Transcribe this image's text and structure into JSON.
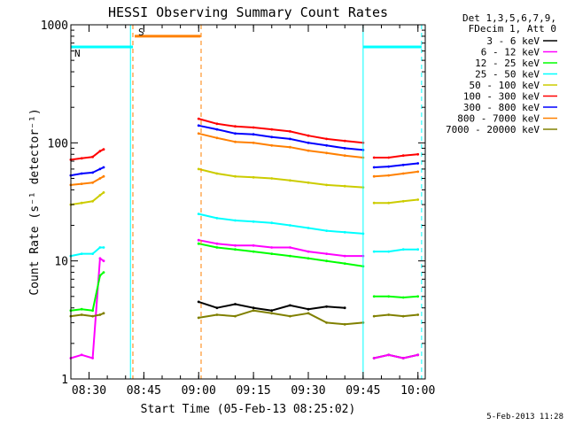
{
  "chart_data": {
    "type": "line",
    "title": "HESSI Observing Summary Count Rates",
    "xlabel": "Start Time (05-Feb-13 08:25:02)",
    "ylabel": "Count Rate (s⁻¹ detector⁻¹)",
    "yscale": "log",
    "ylim": [
      1,
      1000
    ],
    "xlim": [
      "08:25:02",
      "10:02:00"
    ],
    "x_ticks": [
      "08:30",
      "08:45",
      "09:00",
      "09:15",
      "09:30",
      "09:45",
      "10:00"
    ],
    "y_ticks": [
      "1",
      "10",
      "100",
      "1000"
    ],
    "legend_header": [
      "Det 1,3,5,6,7,9,",
      "FDecim 1, Att 0"
    ],
    "legend_position": "right",
    "series": [
      {
        "name": "3 - 6 keV",
        "color": "#000000",
        "segments": [
          {
            "x": [
              "09:00",
              "09:05",
              "09:10",
              "09:15",
              "09:20",
              "09:25",
              "09:30",
              "09:35",
              "09:40"
            ],
            "y": [
              4.5,
              4.0,
              4.3,
              4.0,
              3.8,
              4.2,
              3.9,
              4.1,
              4.0
            ]
          },
          {
            "x": [
              "09:48",
              "09:52",
              "09:56",
              "10:00"
            ],
            "y": [
              1.5,
              1.6,
              1.5,
              1.6
            ]
          }
        ]
      },
      {
        "name": "6 - 12 keV",
        "color": "#ff00ff",
        "segments": [
          {
            "x": [
              "08:25",
              "08:28",
              "08:31",
              "08:33",
              "08:34"
            ],
            "y": [
              1.5,
              1.6,
              1.5,
              10.5,
              10.0
            ]
          },
          {
            "x": [
              "09:00",
              "09:05",
              "09:10",
              "09:15",
              "09:20",
              "09:25",
              "09:30",
              "09:35",
              "09:40",
              "09:45"
            ],
            "y": [
              15,
              14,
              13.5,
              13.5,
              13,
              13,
              12,
              11.5,
              11,
              11
            ]
          },
          {
            "x": [
              "09:48",
              "09:52",
              "09:56",
              "10:00"
            ],
            "y": [
              1.5,
              1.6,
              1.5,
              1.6
            ]
          }
        ]
      },
      {
        "name": "12 - 25 keV",
        "color": "#00ff00",
        "segments": [
          {
            "x": [
              "08:25",
              "08:28",
              "08:31",
              "08:33",
              "08:34"
            ],
            "y": [
              3.8,
              3.9,
              3.8,
              7.5,
              8.0
            ]
          },
          {
            "x": [
              "09:00",
              "09:05",
              "09:10",
              "09:15",
              "09:20",
              "09:25",
              "09:30",
              "09:35",
              "09:40",
              "09:45"
            ],
            "y": [
              14,
              13,
              12.5,
              12,
              11.5,
              11,
              10.5,
              10,
              9.5,
              9.0
            ]
          },
          {
            "x": [
              "09:48",
              "09:52",
              "09:56",
              "10:00"
            ],
            "y": [
              5.0,
              5.0,
              4.9,
              5.0
            ]
          }
        ]
      },
      {
        "name": "25 - 50 keV",
        "color": "#00ffff",
        "segments": [
          {
            "x": [
              "08:25",
              "08:28",
              "08:31",
              "08:33",
              "08:34"
            ],
            "y": [
              11,
              11.5,
              11.5,
              13,
              13
            ]
          },
          {
            "x": [
              "09:00",
              "09:05",
              "09:10",
              "09:15",
              "09:20",
              "09:25",
              "09:30",
              "09:35",
              "09:40",
              "09:45"
            ],
            "y": [
              25,
              23,
              22,
              21.5,
              21,
              20,
              19,
              18,
              17.5,
              17
            ]
          },
          {
            "x": [
              "09:48",
              "09:52",
              "09:56",
              "10:00"
            ],
            "y": [
              12,
              12,
              12.5,
              12.5
            ]
          }
        ]
      },
      {
        "name": "50 - 100 keV",
        "color": "#cccc00",
        "segments": [
          {
            "x": [
              "08:25",
              "08:28",
              "08:31",
              "08:33",
              "08:34"
            ],
            "y": [
              30,
              31,
              32,
              36,
              38
            ]
          },
          {
            "x": [
              "09:00",
              "09:05",
              "09:10",
              "09:15",
              "09:20",
              "09:25",
              "09:30",
              "09:35",
              "09:40",
              "09:45"
            ],
            "y": [
              60,
              55,
              52,
              51,
              50,
              48,
              46,
              44,
              43,
              42
            ]
          },
          {
            "x": [
              "09:48",
              "09:52",
              "09:56",
              "10:00"
            ],
            "y": [
              31,
              31,
              32,
              33
            ]
          }
        ]
      },
      {
        "name": "100 - 300 keV",
        "color": "#ff0000",
        "segments": [
          {
            "x": [
              "08:25",
              "08:28",
              "08:31",
              "08:33",
              "08:34"
            ],
            "y": [
              72,
              74,
              76,
              85,
              88
            ]
          },
          {
            "x": [
              "09:00",
              "09:05",
              "09:10",
              "09:15",
              "09:20",
              "09:25",
              "09:30",
              "09:35",
              "09:40",
              "09:45"
            ],
            "y": [
              160,
              145,
              138,
              135,
              130,
              125,
              115,
              108,
              104,
              100
            ]
          },
          {
            "x": [
              "09:48",
              "09:52",
              "09:56",
              "10:00"
            ],
            "y": [
              75,
              75,
              78,
              80
            ]
          }
        ]
      },
      {
        "name": "300 - 800 keV",
        "color": "#0000ff",
        "segments": [
          {
            "x": [
              "08:25",
              "08:28",
              "08:31",
              "08:33",
              "08:34"
            ],
            "y": [
              53,
              55,
              56,
              60,
              62
            ]
          },
          {
            "x": [
              "09:00",
              "09:05",
              "09:10",
              "09:15",
              "09:20",
              "09:25",
              "09:30",
              "09:35",
              "09:40",
              "09:45"
            ],
            "y": [
              140,
              130,
              120,
              118,
              112,
              108,
              100,
              95,
              90,
              87
            ]
          },
          {
            "x": [
              "09:48",
              "09:52",
              "09:56",
              "10:00"
            ],
            "y": [
              62,
              63,
              65,
              67
            ]
          }
        ]
      },
      {
        "name": "800 - 7000 keV",
        "color": "#ff8000",
        "segments": [
          {
            "x": [
              "08:25",
              "08:28",
              "08:31",
              "08:33",
              "08:34"
            ],
            "y": [
              44,
              45,
              46,
              50,
              52
            ]
          },
          {
            "x": [
              "09:00",
              "09:05",
              "09:10",
              "09:15",
              "09:20",
              "09:25",
              "09:30",
              "09:35",
              "09:40",
              "09:45"
            ],
            "y": [
              120,
              110,
              102,
              100,
              95,
              92,
              86,
              82,
              78,
              75
            ]
          },
          {
            "x": [
              "09:48",
              "09:52",
              "09:56",
              "10:00"
            ],
            "y": [
              52,
              53,
              55,
              57
            ]
          }
        ]
      },
      {
        "name": "7000 - 20000 keV",
        "color": "#808000",
        "segments": [
          {
            "x": [
              "08:25",
              "08:28",
              "08:31",
              "08:33",
              "08:34"
            ],
            "y": [
              3.4,
              3.5,
              3.4,
              3.5,
              3.6
            ]
          },
          {
            "x": [
              "09:00",
              "09:05",
              "09:10",
              "09:15",
              "09:20",
              "09:25",
              "09:30",
              "09:35",
              "09:40",
              "09:45"
            ],
            "y": [
              3.3,
              3.5,
              3.4,
              3.8,
              3.6,
              3.4,
              3.6,
              3.0,
              2.9,
              3.0
            ]
          },
          {
            "x": [
              "09:48",
              "09:52",
              "09:56",
              "10:00"
            ],
            "y": [
              3.4,
              3.5,
              3.4,
              3.5
            ]
          }
        ]
      }
    ],
    "flags": [
      {
        "name": "S",
        "color": "#ff8000",
        "x": [
          "08:42:30",
          "09:00:30"
        ],
        "level": 800
      },
      {
        "name": "N",
        "color": "#00ffff",
        "x": [
          "08:25:02",
          "08:42:00"
        ],
        "level": 650
      },
      {
        "name": "",
        "color": "#00ffff",
        "x": [
          "09:45:00",
          "10:01:00"
        ],
        "level": 650
      }
    ],
    "vlines": [
      {
        "x": "08:41:20",
        "color": "#00ffff",
        "style": "solid"
      },
      {
        "x": "08:42:00",
        "color": "#ff8000",
        "style": "dashed"
      },
      {
        "x": "09:00:40",
        "color": "#ff8000",
        "style": "dashed"
      },
      {
        "x": "09:45:00",
        "color": "#00ffff",
        "style": "solid"
      },
      {
        "x": "10:01:00",
        "color": "#00ffff",
        "style": "dashed"
      }
    ],
    "footer": "5-Feb-2013 11:28"
  }
}
